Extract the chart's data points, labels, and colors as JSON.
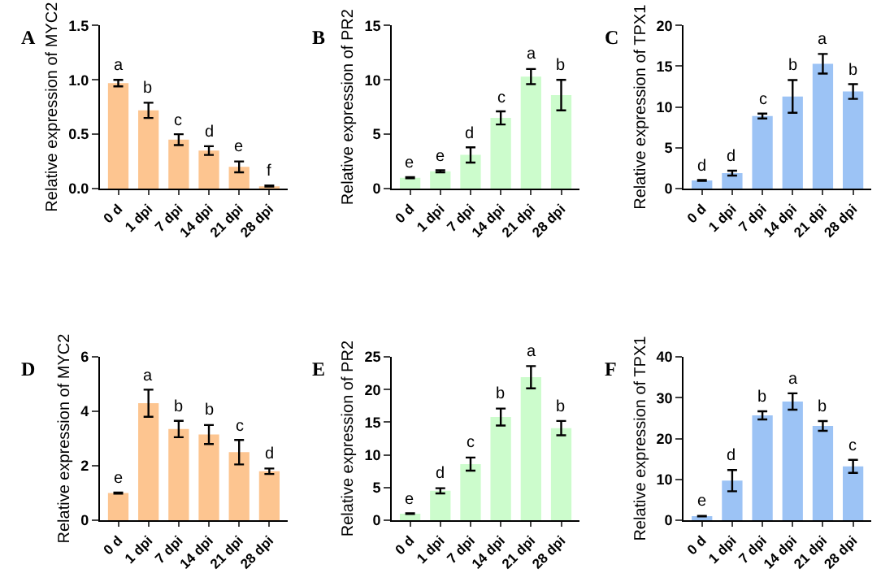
{
  "chart_data": [
    {
      "type": "bar",
      "title": "A",
      "ylabel": "Relative expression of MYC2",
      "categories": [
        "0 d",
        "1 dpi",
        "7 dpi",
        "14 dpi",
        "21 dpi",
        "28 dpi"
      ],
      "values": [
        0.97,
        0.72,
        0.45,
        0.35,
        0.2,
        0.02
      ],
      "errors": [
        0.03,
        0.07,
        0.05,
        0.04,
        0.05,
        [
          0.02,
          0.03
        ]
      ],
      "color": "#fdc590",
      "ylim": [
        0,
        1.5
      ],
      "yticks": [
        {
          "value": 0,
          "label": "0.0"
        },
        {
          "value": 0.5,
          "label": "0.5"
        },
        {
          "value": 1,
          "label": "1.0"
        },
        {
          "value": 1.5,
          "label": "1.5"
        }
      ],
      "annotations": [
        {
          "text": "a",
          "x": "0 d",
          "y": 1.0
        },
        {
          "text": "b",
          "x": "1 dpi",
          "y": 0.79
        },
        {
          "text": "c",
          "x": "7 dpi",
          "y": 0.5
        },
        {
          "text": "d",
          "x": "14 dpi",
          "y": 0.39
        },
        {
          "text": "e",
          "x": "21 dpi",
          "y": 0.25
        },
        {
          "text": "f",
          "x": "28 dpi",
          "y": 0.03
        }
      ]
    },
    {
      "type": "bar",
      "title": "B",
      "ylabel": "Relative expression of PR2",
      "categories": [
        "0 d",
        "1 dpi",
        "7 dpi",
        "14 dpi",
        "21 dpi",
        "28 dpi"
      ],
      "values": [
        1.0,
        1.6,
        3.1,
        6.5,
        10.3,
        8.6
      ],
      "errors": [
        0.05,
        0.1,
        0.7,
        0.6,
        0.7,
        1.4
      ],
      "color": "#ccfccc",
      "ylim": [
        0,
        15
      ],
      "yticks": [
        0,
        5,
        10,
        15
      ],
      "annotations": [
        {
          "text": "e",
          "x": "0 d",
          "y": 1.05
        },
        {
          "text": "e",
          "x": "1 dpi",
          "y": 1.7
        },
        {
          "text": "d",
          "x": "7 dpi",
          "y": 3.8
        },
        {
          "text": "c",
          "x": "14 dpi",
          "y": 7.1
        },
        {
          "text": "a",
          "x": "21 dpi",
          "y": 11.0
        },
        {
          "text": "b",
          "x": "28 dpi",
          "y": 10.0
        }
      ]
    },
    {
      "type": "bar",
      "title": "C",
      "ylabel": "Relative expression of TPX1",
      "categories": [
        "0 d",
        "1 dpi",
        "7 dpi",
        "14 dpi",
        "21 dpi",
        "28 dpi"
      ],
      "values": [
        1.0,
        1.9,
        8.9,
        11.3,
        15.3,
        11.9
      ],
      "errors": [
        0.05,
        0.3,
        0.3,
        2.0,
        1.2,
        0.9
      ],
      "color": "#9cc3f5",
      "ylim": [
        0,
        20
      ],
      "yticks": [
        0,
        5,
        10,
        15,
        20
      ],
      "annotations": [
        {
          "text": "d",
          "x": "0 d",
          "y": 1.05
        },
        {
          "text": "d",
          "x": "1 dpi",
          "y": 2.2
        },
        {
          "text": "c",
          "x": "7 dpi",
          "y": 9.2
        },
        {
          "text": "b",
          "x": "14 dpi",
          "y": 13.3
        },
        {
          "text": "a",
          "x": "21 dpi",
          "y": 16.5
        },
        {
          "text": "b",
          "x": "28 dpi",
          "y": 12.8
        }
      ]
    },
    {
      "type": "bar",
      "title": "D",
      "ylabel": "Relative expression of MYC2",
      "categories": [
        "0 d",
        "1 dpi",
        "7 dpi",
        "14 dpi",
        "21 dpi",
        "28 dpi"
      ],
      "values": [
        1.0,
        4.3,
        3.35,
        3.15,
        2.5,
        1.8
      ],
      "errors": [
        0.02,
        0.5,
        0.3,
        0.35,
        0.45,
        0.1
      ],
      "color": "#fdc590",
      "ylim": [
        0,
        6
      ],
      "yticks": [
        0,
        2,
        4,
        6
      ],
      "annotations": [
        {
          "text": "e",
          "x": "0 d",
          "y": 1.02
        },
        {
          "text": "a",
          "x": "1 dpi",
          "y": 4.8
        },
        {
          "text": "b",
          "x": "7 dpi",
          "y": 3.65
        },
        {
          "text": "b",
          "x": "14 dpi",
          "y": 3.5
        },
        {
          "text": "c",
          "x": "21 dpi",
          "y": 2.95
        },
        {
          "text": "d",
          "x": "28 dpi",
          "y": 1.9
        }
      ]
    },
    {
      "type": "bar",
      "title": "E",
      "ylabel": "Relative expression of PR2",
      "categories": [
        "0 d",
        "1 dpi",
        "7 dpi",
        "14 dpi",
        "21 dpi",
        "28 dpi"
      ],
      "values": [
        1.0,
        4.5,
        8.6,
        15.8,
        21.9,
        14.1
      ],
      "errors": [
        0.05,
        0.4,
        1.0,
        1.3,
        1.7,
        1.1
      ],
      "color": "#ccfccc",
      "ylim": [
        0,
        25
      ],
      "yticks": [
        0,
        5,
        10,
        15,
        20,
        25
      ],
      "annotations": [
        {
          "text": "e",
          "x": "0 d",
          "y": 1.05
        },
        {
          "text": "d",
          "x": "1 dpi",
          "y": 4.9
        },
        {
          "text": "c",
          "x": "7 dpi",
          "y": 9.6
        },
        {
          "text": "b",
          "x": "14 dpi",
          "y": 17.1
        },
        {
          "text": "a",
          "x": "21 dpi",
          "y": 23.6
        },
        {
          "text": "b",
          "x": "28 dpi",
          "y": 15.2
        }
      ]
    },
    {
      "type": "bar",
      "title": "F",
      "ylabel": "Relative expression of TPX1",
      "categories": [
        "0 d",
        "1 dpi",
        "7 dpi",
        "14 dpi",
        "21 dpi",
        "28 dpi"
      ],
      "values": [
        1.0,
        9.7,
        25.7,
        29.1,
        23.1,
        13.2
      ],
      "errors": [
        0.05,
        2.6,
        1.0,
        2.0,
        1.2,
        1.6
      ],
      "color": "#9cc3f5",
      "ylim": [
        0,
        40
      ],
      "yticks": [
        0,
        10,
        20,
        30,
        40
      ],
      "annotations": [
        {
          "text": "e",
          "x": "0 d",
          "y": 1.05
        },
        {
          "text": "d",
          "x": "1 dpi",
          "y": 12.3
        },
        {
          "text": "b",
          "x": "7 dpi",
          "y": 26.7
        },
        {
          "text": "a",
          "x": "14 dpi",
          "y": 31.1
        },
        {
          "text": "b",
          "x": "21 dpi",
          "y": 24.3
        },
        {
          "text": "c",
          "x": "28 dpi",
          "y": 14.8
        }
      ]
    }
  ]
}
